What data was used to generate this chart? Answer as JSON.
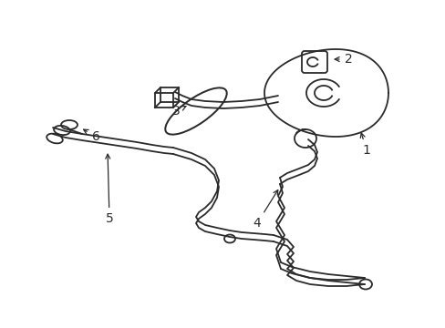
{
  "background_color": "#ffffff",
  "line_color": "#2a2a2a",
  "line_width": 1.3,
  "label_fontsize": 10,
  "fig_width": 4.89,
  "fig_height": 3.6,
  "dpi": 100
}
